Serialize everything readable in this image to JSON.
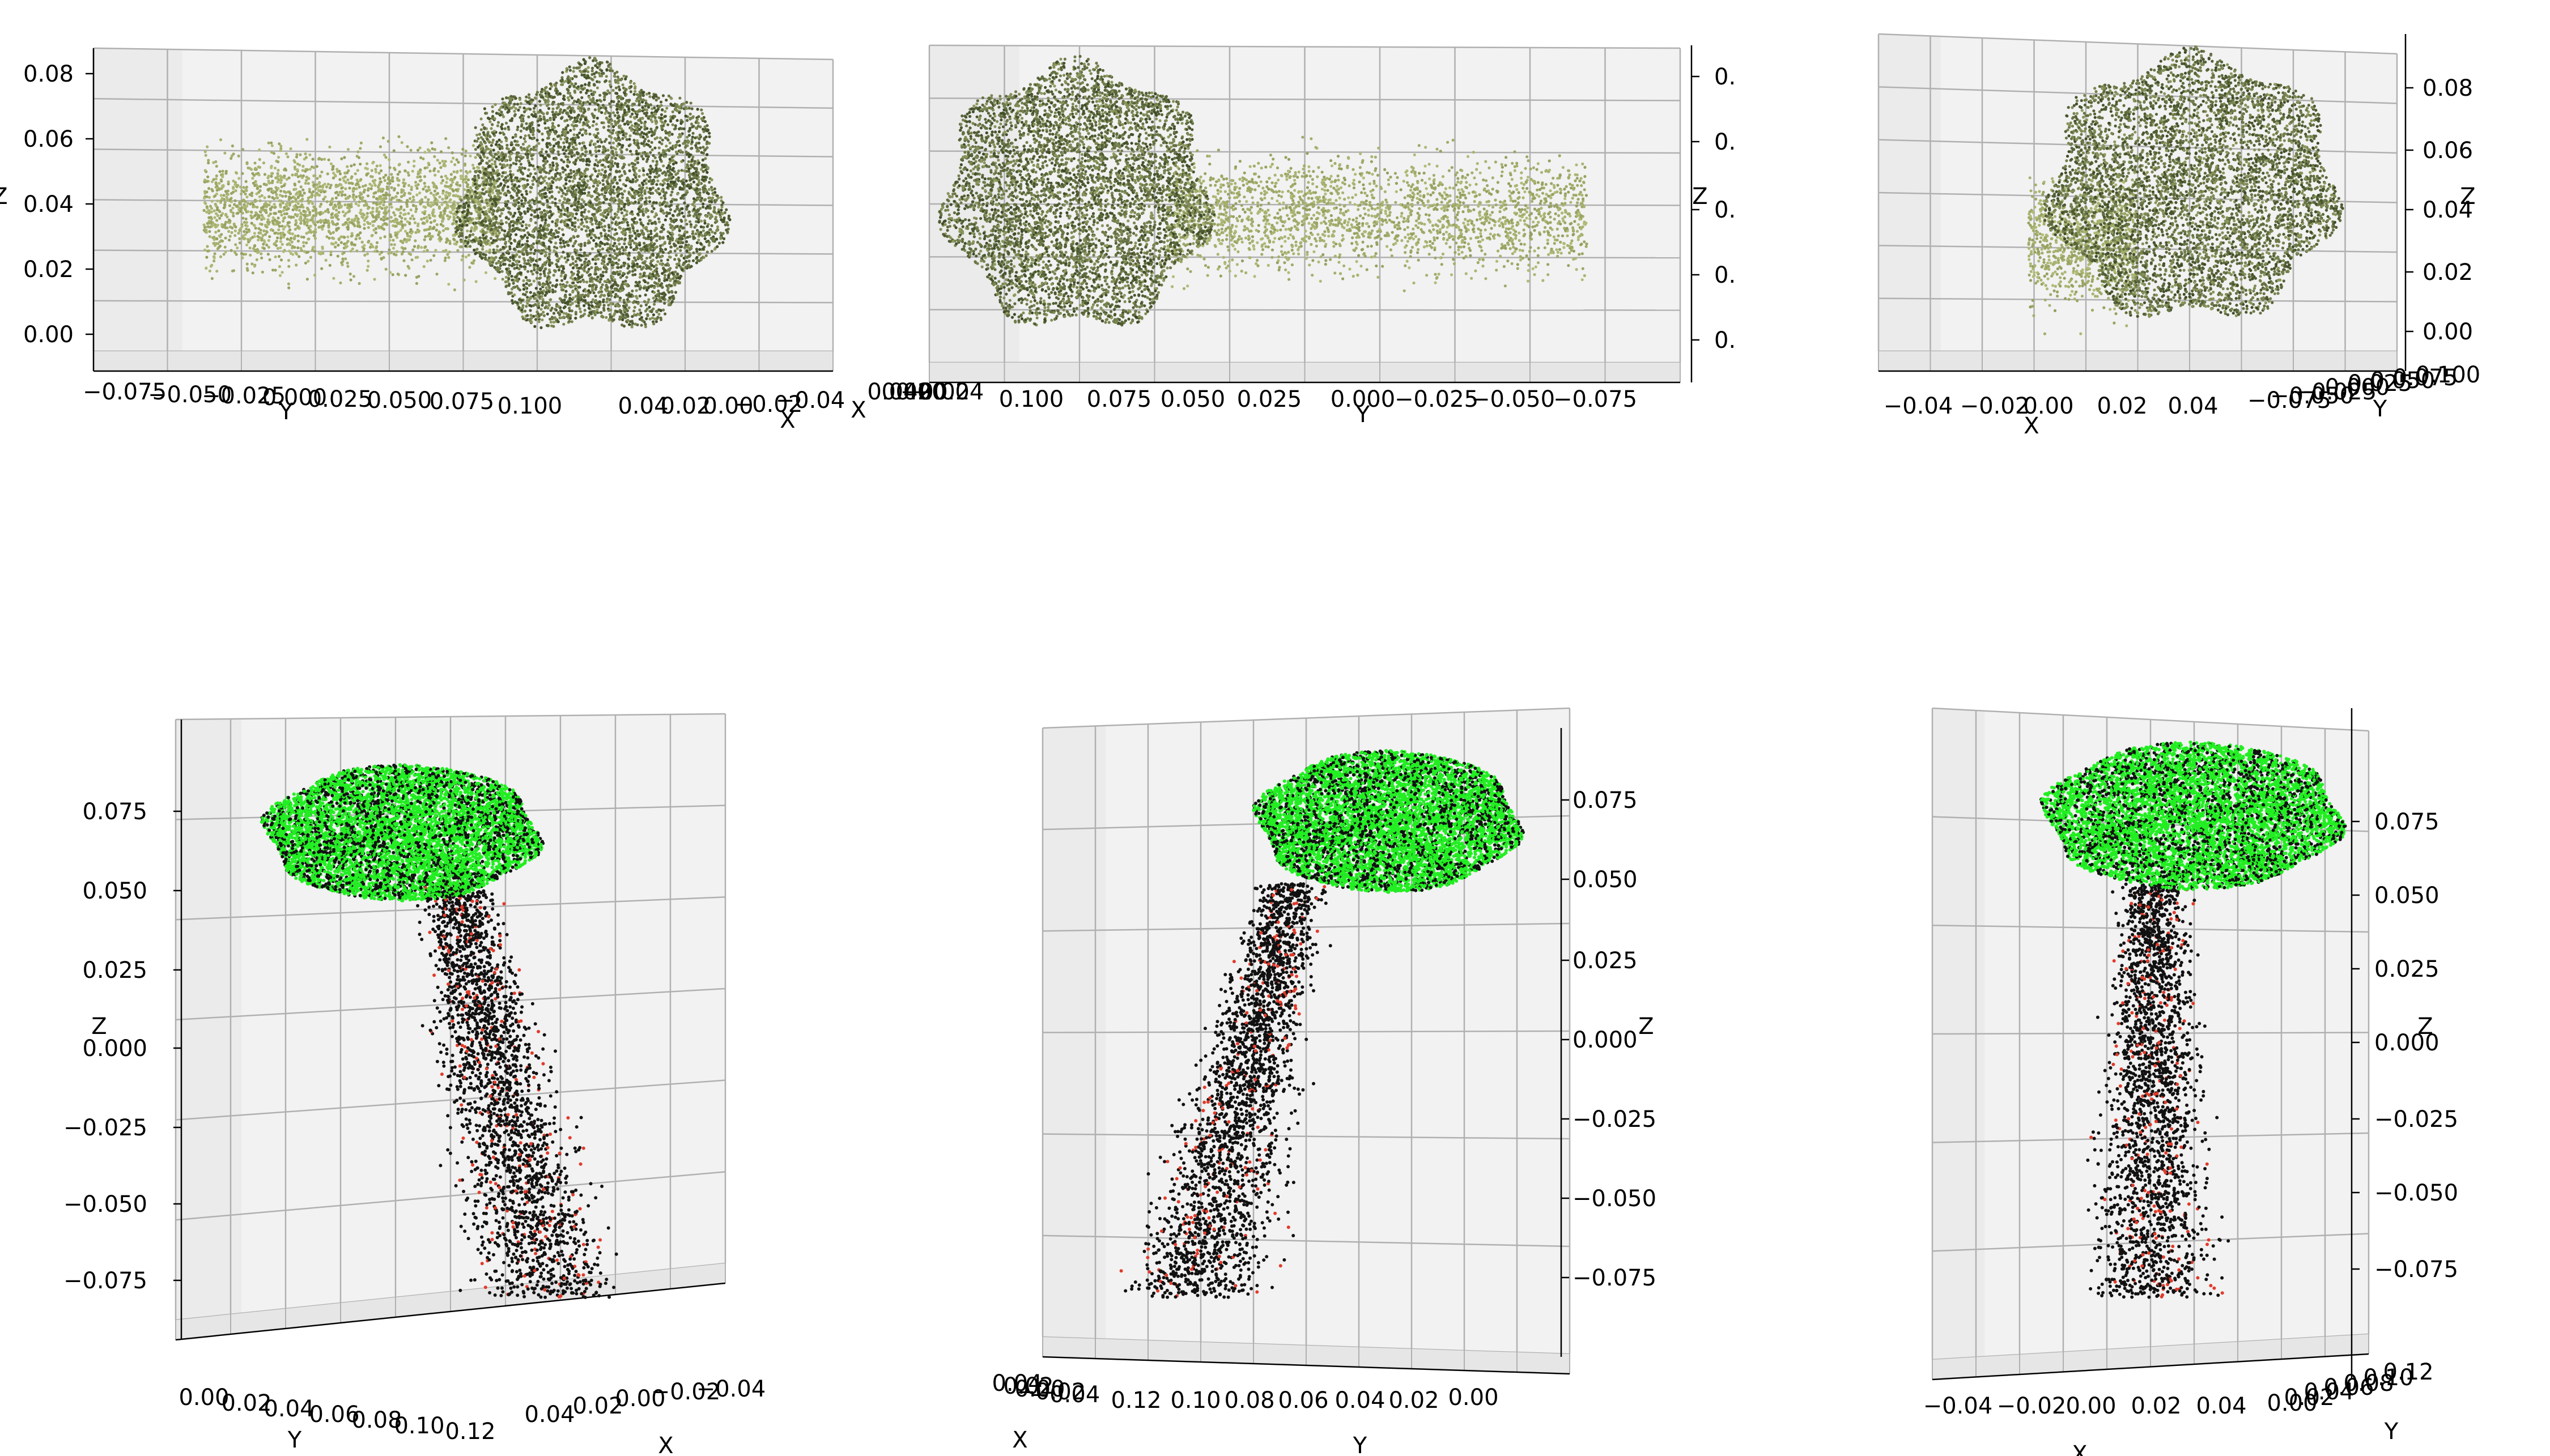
{
  "colors": {
    "pane_light": "#f2f2f2",
    "pane_side": "#ebebeb",
    "pane_floor": "#e6e6e6",
    "grid": "#b0b0b0",
    "axis_line": "#000000",
    "olive_dark": "#3d4a26",
    "olive_mid": "#6b7a3a",
    "olive_light": "#b2bd7a",
    "green": "#22ee22",
    "black_pts": "#111111",
    "red_pts": "#e23a2a"
  },
  "chart_data": [
    {
      "type": "scatter",
      "projection": "3d",
      "point_color_mode": "olive gradient (dark crown, pale stem)",
      "grid": true,
      "axes": {
        "x": {
          "label": "X",
          "ticks": [
            "0.04",
            "0.02",
            "0.00",
            "−0.02",
            "−0.04"
          ]
        },
        "y": {
          "label": "Y",
          "ticks": [
            "−0.075",
            "−0.050",
            "−0.025",
            "0.000",
            "0.025",
            "0.050",
            "0.075",
            "0.100"
          ]
        },
        "z": {
          "label": "Z",
          "ticks": [
            "0.00",
            "0.02",
            "0.04",
            "0.06",
            "0.08"
          ]
        }
      }
    },
    {
      "type": "scatter",
      "projection": "3d",
      "point_color_mode": "olive gradient (dark crown, pale stem)",
      "grid": true,
      "axes": {
        "x": {
          "label": "X",
          "ticks": [
            "0.04",
            "0.02",
            "0.00",
            "−0.02",
            "−0.04"
          ]
        },
        "y": {
          "label": "Y",
          "ticks": [
            "0.100",
            "0.075",
            "0.050",
            "0.025",
            "0.000",
            "−0.025",
            "−0.050",
            "−0.075"
          ]
        },
        "z": {
          "label": "Z",
          "ticks": [
            "0.",
            "0.",
            "0.",
            "0.",
            "0."
          ]
        }
      }
    },
    {
      "type": "scatter",
      "projection": "3d",
      "point_color_mode": "olive gradient (dark crown, pale stem)",
      "grid": true,
      "axes": {
        "x": {
          "label": "X",
          "ticks": [
            "−0.04",
            "−0.02",
            "0.00",
            "0.02",
            "0.04"
          ]
        },
        "y": {
          "label": "Y",
          "ticks": [
            "−0.075",
            "−0.050",
            "−0.025",
            "0.000",
            "0.025",
            "0.050",
            "0.075",
            "0.100"
          ]
        },
        "z": {
          "label": "Z",
          "ticks": [
            "0.00",
            "0.02",
            "0.04",
            "0.06",
            "0.08"
          ]
        }
      }
    },
    {
      "type": "scatter",
      "projection": "3d",
      "point_color_mode": "segmentation: green crown, black stem, red points",
      "grid": true,
      "axes": {
        "x": {
          "label": "X",
          "ticks": [
            "0.04",
            "0.02",
            "0.00",
            "−0.02",
            "−0.04"
          ]
        },
        "y": {
          "label": "Y",
          "ticks": [
            "0.00",
            "0.02",
            "0.04",
            "0.06",
            "0.08",
            "0.10",
            "0.12"
          ]
        },
        "z": {
          "label": "Z",
          "ticks": [
            "0.075",
            "0.050",
            "0.025",
            "0.000",
            "−0.025",
            "−0.050",
            "−0.075"
          ]
        }
      }
    },
    {
      "type": "scatter",
      "projection": "3d",
      "point_color_mode": "segmentation: green crown, black stem, red points",
      "grid": true,
      "axes": {
        "x": {
          "label": "X",
          "ticks": [
            "0.04",
            "0.02",
            "0.00",
            "−0.02",
            "−0.04"
          ]
        },
        "y": {
          "label": "Y",
          "ticks": [
            "0.12",
            "0.10",
            "0.08",
            "0.06",
            "0.04",
            "0.02",
            "0.00"
          ]
        },
        "z": {
          "label": "Z",
          "ticks": [
            "0.075",
            "0.050",
            "0.025",
            "0.000",
            "−0.025",
            "−0.050",
            "−0.075"
          ]
        }
      }
    },
    {
      "type": "scatter",
      "projection": "3d",
      "point_color_mode": "segmentation: green crown, black stem, red points",
      "grid": true,
      "axes": {
        "x": {
          "label": "X",
          "ticks": [
            "−0.04",
            "−0.02",
            "0.00",
            "0.02",
            "0.04"
          ]
        },
        "y": {
          "label": "Y",
          "ticks": [
            "0.00",
            "0.02",
            "0.04",
            "0.06",
            "0.08",
            "0.10",
            "0.12"
          ]
        },
        "z": {
          "label": "Z",
          "ticks": [
            "0.075",
            "0.050",
            "0.025",
            "0.000",
            "−0.025",
            "−0.050",
            "−0.075"
          ]
        }
      }
    }
  ]
}
